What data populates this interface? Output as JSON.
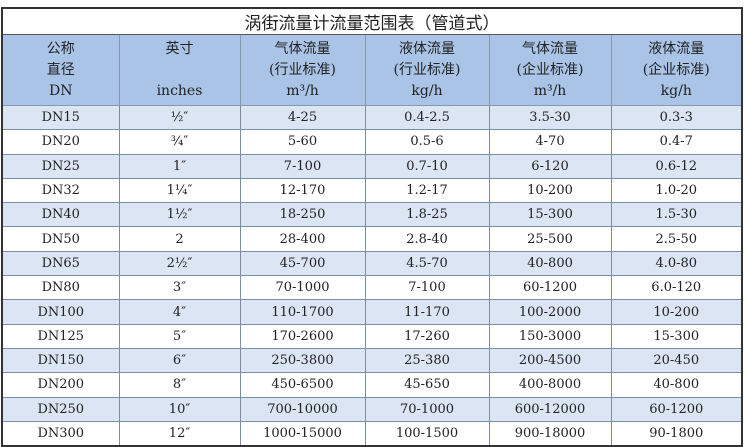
{
  "title": "涡街流量计流量范围表（管道式）",
  "headers": [
    {
      "l1": "公称",
      "l2": "直径",
      "l3": "DN"
    },
    {
      "l1": "英寸",
      "l2": "",
      "l3": "inches"
    },
    {
      "l1": "气体流量",
      "l2": "(行业标准)",
      "l3": "m³/h"
    },
    {
      "l1": "液体流量",
      "l2": "(行业标准)",
      "l3": "kg/h"
    },
    {
      "l1": "气体流量",
      "l2": "(企业标准)",
      "l3": "m³/h"
    },
    {
      "l1": "液体流量",
      "l2": "(企业标准)",
      "l3": "kg/h"
    }
  ],
  "rows": [
    [
      "DN15",
      "½″",
      "4-25",
      "0.4-2.5",
      "3.5-30",
      "0.3-3"
    ],
    [
      "DN20",
      "¾″",
      "5-60",
      "0.5-6",
      "4-70",
      "0.4-7"
    ],
    [
      "DN25",
      "1″",
      "7-100",
      "0.7-10",
      "6-120",
      "0.6-12"
    ],
    [
      "DN32",
      "1¼″",
      "12-170",
      "1.2-17",
      "10-200",
      "1.0-20"
    ],
    [
      "DN40",
      "1½″",
      "18-250",
      "1.8-25",
      "15-300",
      "1.5-30"
    ],
    [
      "DN50",
      "2",
      "28-400",
      "2.8-40",
      "25-500",
      "2.5-50"
    ],
    [
      "DN65",
      "2½″",
      "45-700",
      "4.5-70",
      "40-800",
      "4.0-80"
    ],
    [
      "DN80",
      "3″",
      "70-1000",
      "7-100",
      "60-1200",
      "6.0-120"
    ],
    [
      "DN100",
      "4″",
      "110-1700",
      "11-170",
      "100-2000",
      "10-200"
    ],
    [
      "DN125",
      "5″",
      "170-2600",
      "17-260",
      "150-3000",
      "15-300"
    ],
    [
      "DN150",
      "6″",
      "250-3800",
      "25-380",
      "200-4500",
      "20-450"
    ],
    [
      "DN200",
      "8″",
      "450-6500",
      "45-650",
      "400-8000",
      "40-800"
    ],
    [
      "DN250",
      "10″",
      "700-10000",
      "70-1000",
      "600-12000",
      "60-1200"
    ],
    [
      "DN300",
      "12″",
      "1000-15000",
      "100-1500",
      "900-18000",
      "90-1800"
    ]
  ]
}
